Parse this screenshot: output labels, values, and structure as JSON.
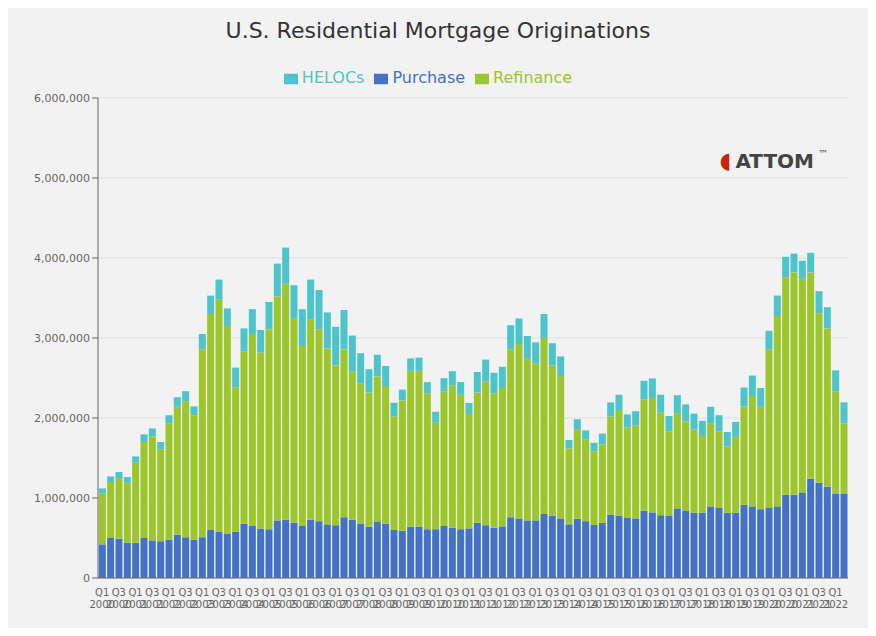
{
  "chart_data": {
    "type": "bar",
    "title": "U.S. Residential Mortgage Originations",
    "stacked": true,
    "grid": true,
    "legend": "top",
    "annotations": [
      "ATTOM",
      "◖",
      "™"
    ],
    "categories": [
      "Q1\n2000",
      null,
      "Q3\n2000",
      null,
      "Q1\n2001",
      null,
      "Q3\n2001",
      null,
      "Q1\n2002",
      null,
      "Q3\n2002",
      null,
      "Q1\n2003",
      null,
      "Q3\n2003",
      null,
      "Q1\n2004",
      null,
      "Q3\n2004",
      null,
      "Q1\n2005",
      null,
      "Q3\n2005",
      null,
      "Q1\n2006",
      null,
      "Q3\n2006",
      null,
      "Q1\n2007",
      null,
      "Q3\n2007",
      null,
      "Q1\n2008",
      null,
      "Q3\n2008",
      null,
      "Q1\n2009",
      null,
      "Q3\n2009",
      null,
      "Q1\n2010",
      null,
      "Q3\n2010",
      null,
      "Q1\n2011",
      null,
      "Q3\n2011",
      null,
      "Q1\n2012",
      null,
      "Q3\n2012",
      null,
      "Q1\n2013",
      null,
      "Q3\n2013",
      null,
      "Q1\n2014",
      null,
      "Q3\n2014",
      null,
      "Q1\n2015",
      null,
      "Q3\n2015",
      null,
      "Q1\n2016",
      null,
      "Q3\n2016",
      null,
      "Q1\n2017",
      null,
      "Q3\n2017",
      null,
      "Q1\n2018",
      null,
      "Q3\n2018",
      null,
      "Q1\n2019",
      null,
      "Q3\n2019",
      null,
      "Q1\n2020",
      null,
      "Q3\n2020",
      null,
      "Q1\n2021",
      null,
      "Q3\n2021",
      null,
      "Q1\n2022",
      null
    ],
    "series": [
      {
        "name": "Purchase",
        "color": "#4472c4",
        "values": [
          420000,
          500000,
          490000,
          440000,
          440000,
          500000,
          470000,
          460000,
          480000,
          540000,
          510000,
          480000,
          510000,
          600000,
          580000,
          550000,
          580000,
          680000,
          650000,
          620000,
          610000,
          720000,
          730000,
          690000,
          650000,
          730000,
          710000,
          670000,
          660000,
          760000,
          730000,
          680000,
          640000,
          700000,
          680000,
          600000,
          590000,
          640000,
          640000,
          610000,
          610000,
          650000,
          630000,
          610000,
          620000,
          690000,
          660000,
          630000,
          645000,
          760000,
          745000,
          720000,
          720000,
          800000,
          780000,
          745000,
          670000,
          740000,
          710000,
          665000,
          690000,
          790000,
          780000,
          750000,
          745000,
          840000,
          820000,
          785000,
          775000,
          870000,
          845000,
          815000,
          815000,
          895000,
          875000,
          815000,
          815000,
          915000,
          895000,
          860000,
          875000,
          895000,
          1040000,
          1040000,
          1070000,
          1240000,
          1190000,
          1140000,
          1050000,
          1050000
        ]
      },
      {
        "name": "Refinance",
        "color": "#9dc62d",
        "values": [
          640000,
          700000,
          760000,
          750000,
          1000000,
          1200000,
          1300000,
          1150000,
          1450000,
          1600000,
          1700000,
          1550000,
          2350000,
          2700000,
          2900000,
          2600000,
          1800000,
          2150000,
          2400000,
          2200000,
          2500000,
          2800000,
          2950000,
          2550000,
          2250000,
          2500000,
          2400000,
          2200000,
          2000000,
          2100000,
          1850000,
          1750000,
          1680000,
          1820000,
          1720000,
          1420000,
          1630000,
          1950000,
          1950000,
          1700000,
          1330000,
          1680000,
          1780000,
          1680000,
          1430000,
          1630000,
          1800000,
          1680000,
          1730000,
          2100000,
          2180000,
          2020000,
          1960000,
          2200000,
          1880000,
          1780000,
          950000,
          1120000,
          1020000,
          920000,
          980000,
          1230000,
          1320000,
          1130000,
          1160000,
          1390000,
          1430000,
          1280000,
          1060000,
          1190000,
          1110000,
          1040000,
          960000,
          1040000,
          960000,
          830000,
          950000,
          1230000,
          1380000,
          1280000,
          1980000,
          2380000,
          2720000,
          2780000,
          2670000,
          2580000,
          2120000,
          1980000,
          1280000,
          880000
        ]
      },
      {
        "name": "HELOCs",
        "color": "#4dc4cb",
        "values": [
          60000,
          70000,
          75000,
          72000,
          80000,
          95000,
          100000,
          90000,
          105000,
          120000,
          125000,
          115000,
          190000,
          230000,
          250000,
          220000,
          250000,
          290000,
          310000,
          280000,
          340000,
          410000,
          450000,
          420000,
          460000,
          500000,
          490000,
          450000,
          480000,
          490000,
          450000,
          380000,
          290000,
          270000,
          250000,
          170000,
          135000,
          155000,
          165000,
          138000,
          138000,
          168000,
          175000,
          160000,
          138000,
          255000,
          270000,
          255000,
          265000,
          300000,
          320000,
          285000,
          265000,
          300000,
          275000,
          245000,
          105000,
          125000,
          115000,
          105000,
          135000,
          175000,
          190000,
          165000,
          180000,
          235000,
          245000,
          225000,
          190000,
          225000,
          215000,
          200000,
          190000,
          205000,
          200000,
          180000,
          185000,
          235000,
          255000,
          235000,
          235000,
          255000,
          255000,
          235000,
          225000,
          245000,
          275000,
          265000,
          265000,
          265000
        ]
      }
    ],
    "ylim": [
      0,
      6000000
    ],
    "yticks": [
      0,
      {
        "value": 1000000,
        "label": "1,000,000"
      },
      {
        "value": 2000000,
        "label": "2,000,000"
      },
      {
        "value": 3000000,
        "label": "3,000,000"
      },
      {
        "value": 4000000,
        "label": "4,000,000"
      },
      {
        "value": 5000000,
        "label": "5,000,000"
      },
      {
        "value": 6000000,
        "label": "6,000,000"
      }
    ]
  }
}
